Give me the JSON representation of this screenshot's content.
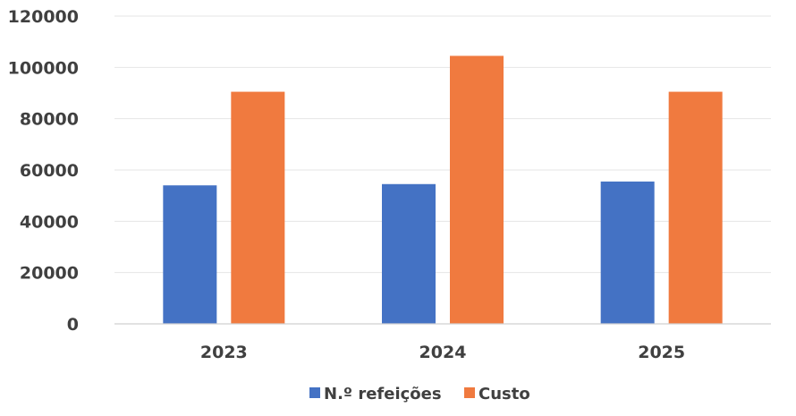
{
  "chart_data": {
    "type": "bar",
    "categories": [
      "2023",
      "2024",
      "2025"
    ],
    "series": [
      {
        "name": "N.º refeições",
        "color": "#4472C4",
        "values": [
          54000,
          54500,
          55500
        ]
      },
      {
        "name": "Custo",
        "color": "#F07A3F",
        "values": [
          90500,
          104500,
          90500
        ]
      }
    ],
    "y_ticks": [
      "0",
      "20000",
      "40000",
      "60000",
      "80000",
      "100000",
      "120000"
    ],
    "ylim": [
      0,
      120000
    ],
    "grid": true,
    "legend_position": "bottom"
  }
}
